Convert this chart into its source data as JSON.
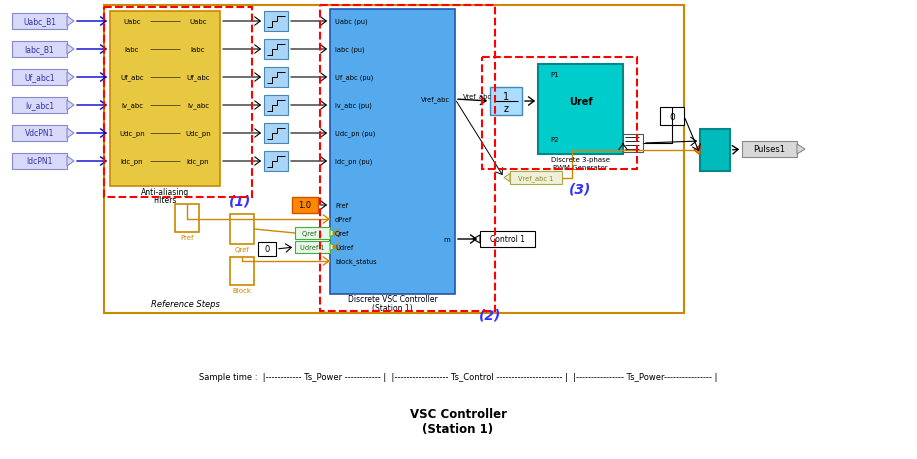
{
  "bg_color": "#ffffff",
  "title": "VSC Controller\n(Station 1)",
  "sample_time_text": "Sample time :  |------------ Ts_Power ------------ |  |------------------ Ts_Control ---------------------- |  |---------------- Ts_Power---------------- |",
  "input_labels": [
    "Uabc_B1",
    "Iabc_B1",
    "Uf_abc1",
    "Iv_abc1",
    "VdcPN1",
    "IdcPN1"
  ],
  "filter_inputs": [
    "Uabc",
    "Iabc",
    "Uf_abc",
    "Iv_abc",
    "Udc_pn",
    "Idc_pn"
  ],
  "filter_outputs": [
    "Uabc",
    "Iabc",
    "Uf_abc",
    "Iv_abc",
    "Udc_pn",
    "Idc_pn"
  ],
  "controller_inputs": [
    "Uabc (pu)",
    "Iabc (pu)",
    "Uf_abc (pu)",
    "Iv_abc (pu)",
    "Udc_pn (pu)",
    "Idc_pn (pu)",
    "Pref",
    "dPref",
    "Qref",
    "Udref",
    "block_status"
  ],
  "label1": "(1)",
  "label2": "(2)",
  "label3": "(3)"
}
